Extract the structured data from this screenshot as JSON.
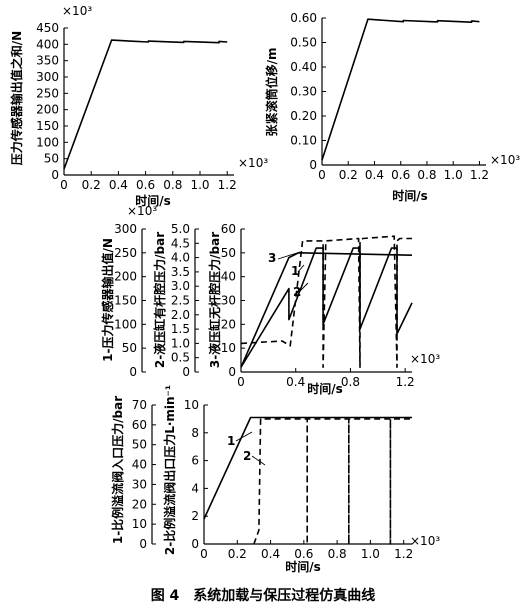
{
  "caption": "图 4　系统加载与保压过程仿真曲线",
  "chart_data": [
    {
      "id": "force",
      "type": "line",
      "ylabel": "压力传感器输出值之和/N",
      "xlabel": "时间/s",
      "x_exp": "×10³",
      "y_exp": "×10³",
      "xlim": [
        0,
        1.25
      ],
      "ylim": [
        0,
        450
      ],
      "xticks": [
        "0",
        "0.2",
        "0.4",
        "0.6",
        "0.8",
        "1.0",
        "1.2"
      ],
      "yticks": [
        "0",
        "50",
        "100",
        "150",
        "200",
        "250",
        "300",
        "350",
        "400",
        "450"
      ],
      "series": [
        {
          "x": [
            0,
            0.35,
            0.62,
            0.62,
            0.88,
            0.88,
            1.14,
            1.14,
            1.2
          ],
          "y": [
            18,
            413,
            407,
            410,
            406,
            409,
            405,
            409,
            407
          ]
        }
      ]
    },
    {
      "id": "displacement",
      "type": "line",
      "ylabel": "张紧滚筒位移/m",
      "xlabel": "时间/s",
      "x_exp": "×10³",
      "xlim": [
        0,
        1.25
      ],
      "ylim": [
        0,
        0.6
      ],
      "xticks": [
        "0",
        "0.2",
        "0.4",
        "0.6",
        "0.8",
        "1.0",
        "1.2"
      ],
      "yticks": [
        "0",
        "0.10",
        "0.20",
        "0.30",
        "0.40",
        "0.50",
        "0.60"
      ],
      "series": [
        {
          "x": [
            0,
            0.35,
            0.62,
            0.62,
            0.88,
            0.88,
            1.14,
            1.14,
            1.2
          ],
          "y": [
            0.02,
            0.595,
            0.585,
            0.59,
            0.584,
            0.589,
            0.583,
            0.588,
            0.585
          ]
        }
      ]
    },
    {
      "id": "pressures",
      "type": "line",
      "ylabel": "1-压力传感器输出值/N",
      "y_exp": "×10³",
      "ylabel2": "2-液压缸有杆腔压力/bar",
      "ylabel3": "3-液压缸无杆腔压力/bar",
      "xlabel": "时间/s",
      "x_exp": "×10³",
      "xlim": [
        0,
        1.25
      ],
      "ylim": [
        0,
        60
      ],
      "xticks": [
        "0",
        "0.4",
        "0.8",
        "1.2"
      ],
      "yticks": [
        "0",
        "10",
        "20",
        "30",
        "40",
        "50",
        "60"
      ],
      "yticks_left": [
        "0",
        "50",
        "100",
        "150",
        "200",
        "250",
        "300"
      ],
      "yticks_mid": [
        "0",
        "0.5",
        "1.0",
        "1.5",
        "2.0",
        "2.5",
        "3.0",
        "3.5",
        "4.0",
        "4.5",
        "5.0"
      ],
      "series": [
        {
          "name": "1",
          "dash": "",
          "x": [
            0,
            0.35,
            0.42,
            1.25
          ],
          "y": [
            2,
            48,
            50,
            49
          ]
        },
        {
          "name": "2",
          "dash": "",
          "x": [
            0,
            0.35,
            0.35,
            0.55,
            0.6,
            0.6,
            0.82,
            0.87,
            0.87,
            1.1,
            1.14,
            1.14,
            1.25
          ],
          "y": [
            2,
            35,
            22,
            52,
            52,
            20,
            52,
            52,
            18,
            52,
            52,
            16,
            29
          ]
        },
        {
          "name": "3",
          "dash": "6,4",
          "x": [
            0,
            0.3,
            0.36,
            0.45,
            0.6,
            0.6,
            0.62,
            0.86,
            0.87,
            0.87,
            0.89,
            1.12,
            1.14,
            1.14,
            1.16,
            1.25
          ],
          "y": [
            12,
            13,
            11,
            55,
            55,
            2,
            55,
            56,
            2,
            55,
            56,
            57,
            2,
            55,
            56,
            56
          ]
        }
      ],
      "annotations": [
        "3",
        "1",
        "2"
      ]
    },
    {
      "id": "relief",
      "type": "line",
      "ylabel": "1-比例溢流阀入口压力/bar",
      "ylabel2": "2-比例溢流阀出口压力L·min⁻¹",
      "xlabel": "时间/s",
      "x_exp": "×10³",
      "xlim": [
        0,
        1.25
      ],
      "ylim": [
        0,
        10
      ],
      "xticks": [
        "0",
        "0.2",
        "0.4",
        "0.6",
        "0.8",
        "1.0",
        "1.2"
      ],
      "yticks": [
        "0",
        "2",
        "4",
        "6",
        "8",
        "10"
      ],
      "yticks_left": [
        "0",
        "10",
        "20",
        "30",
        "40",
        "50",
        "60",
        "70"
      ],
      "series": [
        {
          "name": "1",
          "dash": "",
          "x": [
            0,
            0.28,
            1.25
          ],
          "y": [
            1.8,
            9.1,
            9.1
          ]
        },
        {
          "name": "2",
          "dash": "6,4",
          "x": [
            0.3,
            0.33,
            0.34,
            0.36,
            0.62,
            0.62,
            0.62,
            0.62,
            0.87,
            0.87,
            0.87,
            0.87,
            1.12,
            1.12,
            1.12,
            1.12,
            1.25
          ],
          "y": [
            0,
            1,
            9,
            9,
            9,
            0,
            0,
            9,
            9,
            0,
            0,
            9,
            9,
            0,
            0,
            9,
            9
          ]
        }
      ],
      "annotations": [
        "1",
        "2"
      ]
    }
  ]
}
